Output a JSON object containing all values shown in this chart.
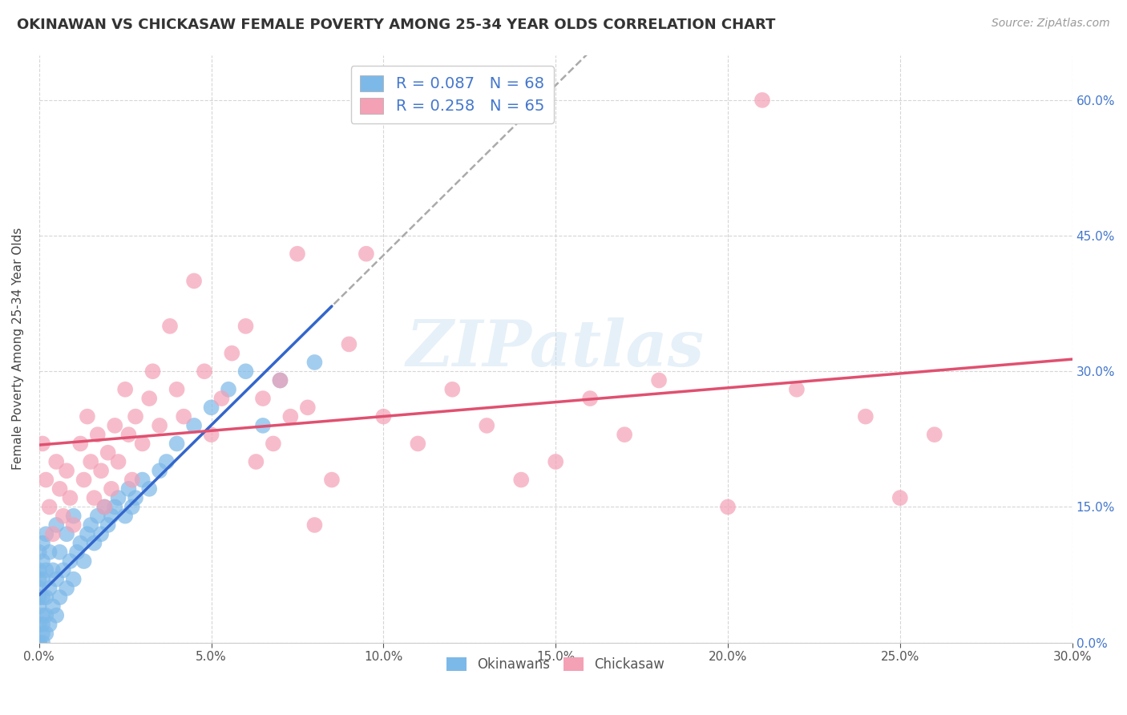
{
  "title": "OKINAWAN VS CHICKASAW FEMALE POVERTY AMONG 25-34 YEAR OLDS CORRELATION CHART",
  "source": "Source: ZipAtlas.com",
  "ylabel": "Female Poverty Among 25-34 Year Olds",
  "xlim": [
    0.0,
    0.3
  ],
  "ylim": [
    0.0,
    0.65
  ],
  "xticks": [
    0.0,
    0.05,
    0.1,
    0.15,
    0.2,
    0.25,
    0.3
  ],
  "yticks": [
    0.0,
    0.15,
    0.3,
    0.45,
    0.6
  ],
  "okinawan_color": "#7db9e8",
  "chickasaw_color": "#f4a0b5",
  "okinawan_line_color": "#3366cc",
  "chickasaw_line_color": "#e05070",
  "dashed_line_color": "#aaaaaa",
  "okinawan_R": 0.087,
  "okinawan_N": 68,
  "chickasaw_R": 0.258,
  "chickasaw_N": 65,
  "legend_label_okinawan": "Okinawans",
  "legend_label_chickasaw": "Chickasaw",
  "watermark": "ZIPatlas",
  "background_color": "#ffffff",
  "grid_color": "#cccccc",
  "title_color": "#333333",
  "source_color": "#999999",
  "ylabel_color": "#444444",
  "ytick_label_color": "#4477cc",
  "xtick_label_color": "#555555",
  "okinawan_x": [
    0.0,
    0.0,
    0.0,
    0.0,
    0.0,
    0.0,
    0.0,
    0.0,
    0.0,
    0.0,
    0.001,
    0.001,
    0.001,
    0.001,
    0.001,
    0.001,
    0.001,
    0.001,
    0.002,
    0.002,
    0.002,
    0.002,
    0.002,
    0.003,
    0.003,
    0.003,
    0.004,
    0.004,
    0.005,
    0.005,
    0.005,
    0.006,
    0.006,
    0.007,
    0.008,
    0.008,
    0.009,
    0.01,
    0.01,
    0.011,
    0.012,
    0.013,
    0.014,
    0.015,
    0.016,
    0.017,
    0.018,
    0.019,
    0.02,
    0.021,
    0.022,
    0.023,
    0.025,
    0.026,
    0.027,
    0.028,
    0.03,
    0.032,
    0.035,
    0.037,
    0.04,
    0.045,
    0.05,
    0.055,
    0.06,
    0.065,
    0.07,
    0.08
  ],
  "okinawan_y": [
    0.0,
    0.0,
    0.0,
    0.02,
    0.04,
    0.05,
    0.06,
    0.07,
    0.08,
    0.1,
    0.0,
    0.01,
    0.02,
    0.03,
    0.05,
    0.07,
    0.09,
    0.11,
    0.01,
    0.03,
    0.05,
    0.08,
    0.12,
    0.02,
    0.06,
    0.1,
    0.04,
    0.08,
    0.03,
    0.07,
    0.13,
    0.05,
    0.1,
    0.08,
    0.06,
    0.12,
    0.09,
    0.07,
    0.14,
    0.1,
    0.11,
    0.09,
    0.12,
    0.13,
    0.11,
    0.14,
    0.12,
    0.15,
    0.13,
    0.14,
    0.15,
    0.16,
    0.14,
    0.17,
    0.15,
    0.16,
    0.18,
    0.17,
    0.19,
    0.2,
    0.22,
    0.24,
    0.26,
    0.28,
    0.3,
    0.24,
    0.29,
    0.31
  ],
  "chickasaw_x": [
    0.001,
    0.002,
    0.003,
    0.004,
    0.005,
    0.006,
    0.007,
    0.008,
    0.009,
    0.01,
    0.012,
    0.013,
    0.014,
    0.015,
    0.016,
    0.017,
    0.018,
    0.019,
    0.02,
    0.021,
    0.022,
    0.023,
    0.025,
    0.026,
    0.027,
    0.028,
    0.03,
    0.032,
    0.033,
    0.035,
    0.038,
    0.04,
    0.042,
    0.045,
    0.048,
    0.05,
    0.053,
    0.056,
    0.06,
    0.063,
    0.065,
    0.068,
    0.07,
    0.073,
    0.075,
    0.078,
    0.08,
    0.085,
    0.09,
    0.095,
    0.1,
    0.11,
    0.12,
    0.13,
    0.14,
    0.15,
    0.16,
    0.17,
    0.18,
    0.2,
    0.21,
    0.22,
    0.24,
    0.25,
    0.26
  ],
  "chickasaw_y": [
    0.22,
    0.18,
    0.15,
    0.12,
    0.2,
    0.17,
    0.14,
    0.19,
    0.16,
    0.13,
    0.22,
    0.18,
    0.25,
    0.2,
    0.16,
    0.23,
    0.19,
    0.15,
    0.21,
    0.17,
    0.24,
    0.2,
    0.28,
    0.23,
    0.18,
    0.25,
    0.22,
    0.27,
    0.3,
    0.24,
    0.35,
    0.28,
    0.25,
    0.4,
    0.3,
    0.23,
    0.27,
    0.32,
    0.35,
    0.2,
    0.27,
    0.22,
    0.29,
    0.25,
    0.43,
    0.26,
    0.13,
    0.18,
    0.33,
    0.43,
    0.25,
    0.22,
    0.28,
    0.24,
    0.18,
    0.2,
    0.27,
    0.23,
    0.29,
    0.15,
    0.6,
    0.28,
    0.25,
    0.16,
    0.23
  ]
}
